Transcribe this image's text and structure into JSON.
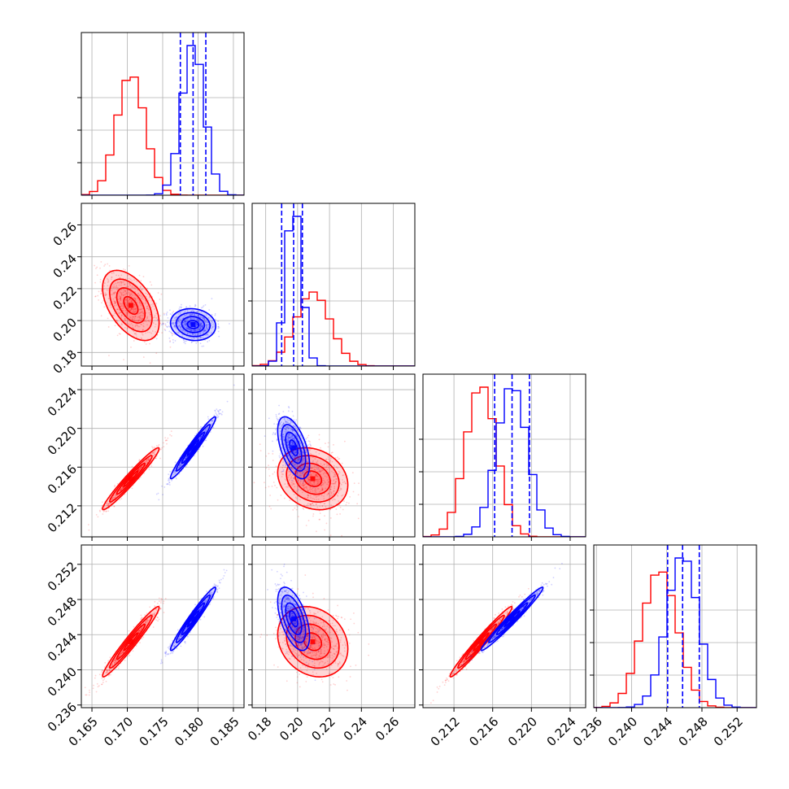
{
  "colors": {
    "red": "#ff0000",
    "blue": "#0000ff",
    "grid": "#b0b0b0",
    "frame": "#000000"
  },
  "chart_data": {
    "type": "scatter",
    "title": "",
    "plot_kind": "corner",
    "grid": true,
    "parameters": [
      {
        "id": "p0",
        "range": [
          0.1635,
          0.1865
        ],
        "ticks": [
          "0.165",
          "0.170",
          "0.175",
          "0.180",
          "0.185"
        ],
        "tick_values": [
          0.165,
          0.17,
          0.175,
          0.18,
          0.185
        ]
      },
      {
        "id": "p1",
        "range": [
          0.1715,
          0.2735
        ],
        "ticks": [
          "0.18",
          "0.20",
          "0.22",
          "0.24",
          "0.26"
        ],
        "tick_values": [
          0.18,
          0.2,
          0.22,
          0.24,
          0.26
        ]
      },
      {
        "id": "p2",
        "range": [
          0.2088,
          0.2256
        ],
        "ticks": [
          "0.212",
          "0.216",
          "0.220",
          "0.224"
        ],
        "tick_values": [
          0.212,
          0.216,
          0.22,
          0.224
        ]
      },
      {
        "id": "p3",
        "range": [
          0.2357,
          0.2542
        ],
        "ticks": [
          "0.236",
          "0.240",
          "0.244",
          "0.248",
          "0.252"
        ],
        "tick_values": [
          0.236,
          0.24,
          0.244,
          0.248,
          0.252
        ]
      }
    ],
    "series": [
      {
        "color": "red",
        "mean": [
          0.1705,
          0.2095,
          0.2148,
          0.2432
        ],
        "sd": [
          0.002,
          0.011,
          0.0016,
          0.002
        ],
        "corr": {
          "0-1": -0.5,
          "0-2": 0.97,
          "0-3": 0.97,
          "1-2": -0.2,
          "1-3": -0.2,
          "2-3": 0.98
        },
        "quantile_lines": false
      },
      {
        "color": "blue",
        "mean": [
          0.1793,
          0.1975,
          0.218,
          0.2458
        ],
        "sd": [
          0.0016,
          0.005,
          0.0016,
          0.0018
        ],
        "corr": {
          "0-1": -0.1,
          "0-2": 0.97,
          "0-3": 0.97,
          "1-2": -0.55,
          "1-3": -0.55,
          "2-3": 0.98
        },
        "quantile_lines": true,
        "quantiles": {
          "p0": [
            0.1775,
            0.1793,
            0.1811
          ],
          "p1": [
            0.19,
            0.1975,
            0.203
          ],
          "p2": [
            0.2162,
            0.218,
            0.2198
          ],
          "p3": [
            0.2441,
            0.2458,
            0.2477
          ]
        }
      }
    ]
  }
}
